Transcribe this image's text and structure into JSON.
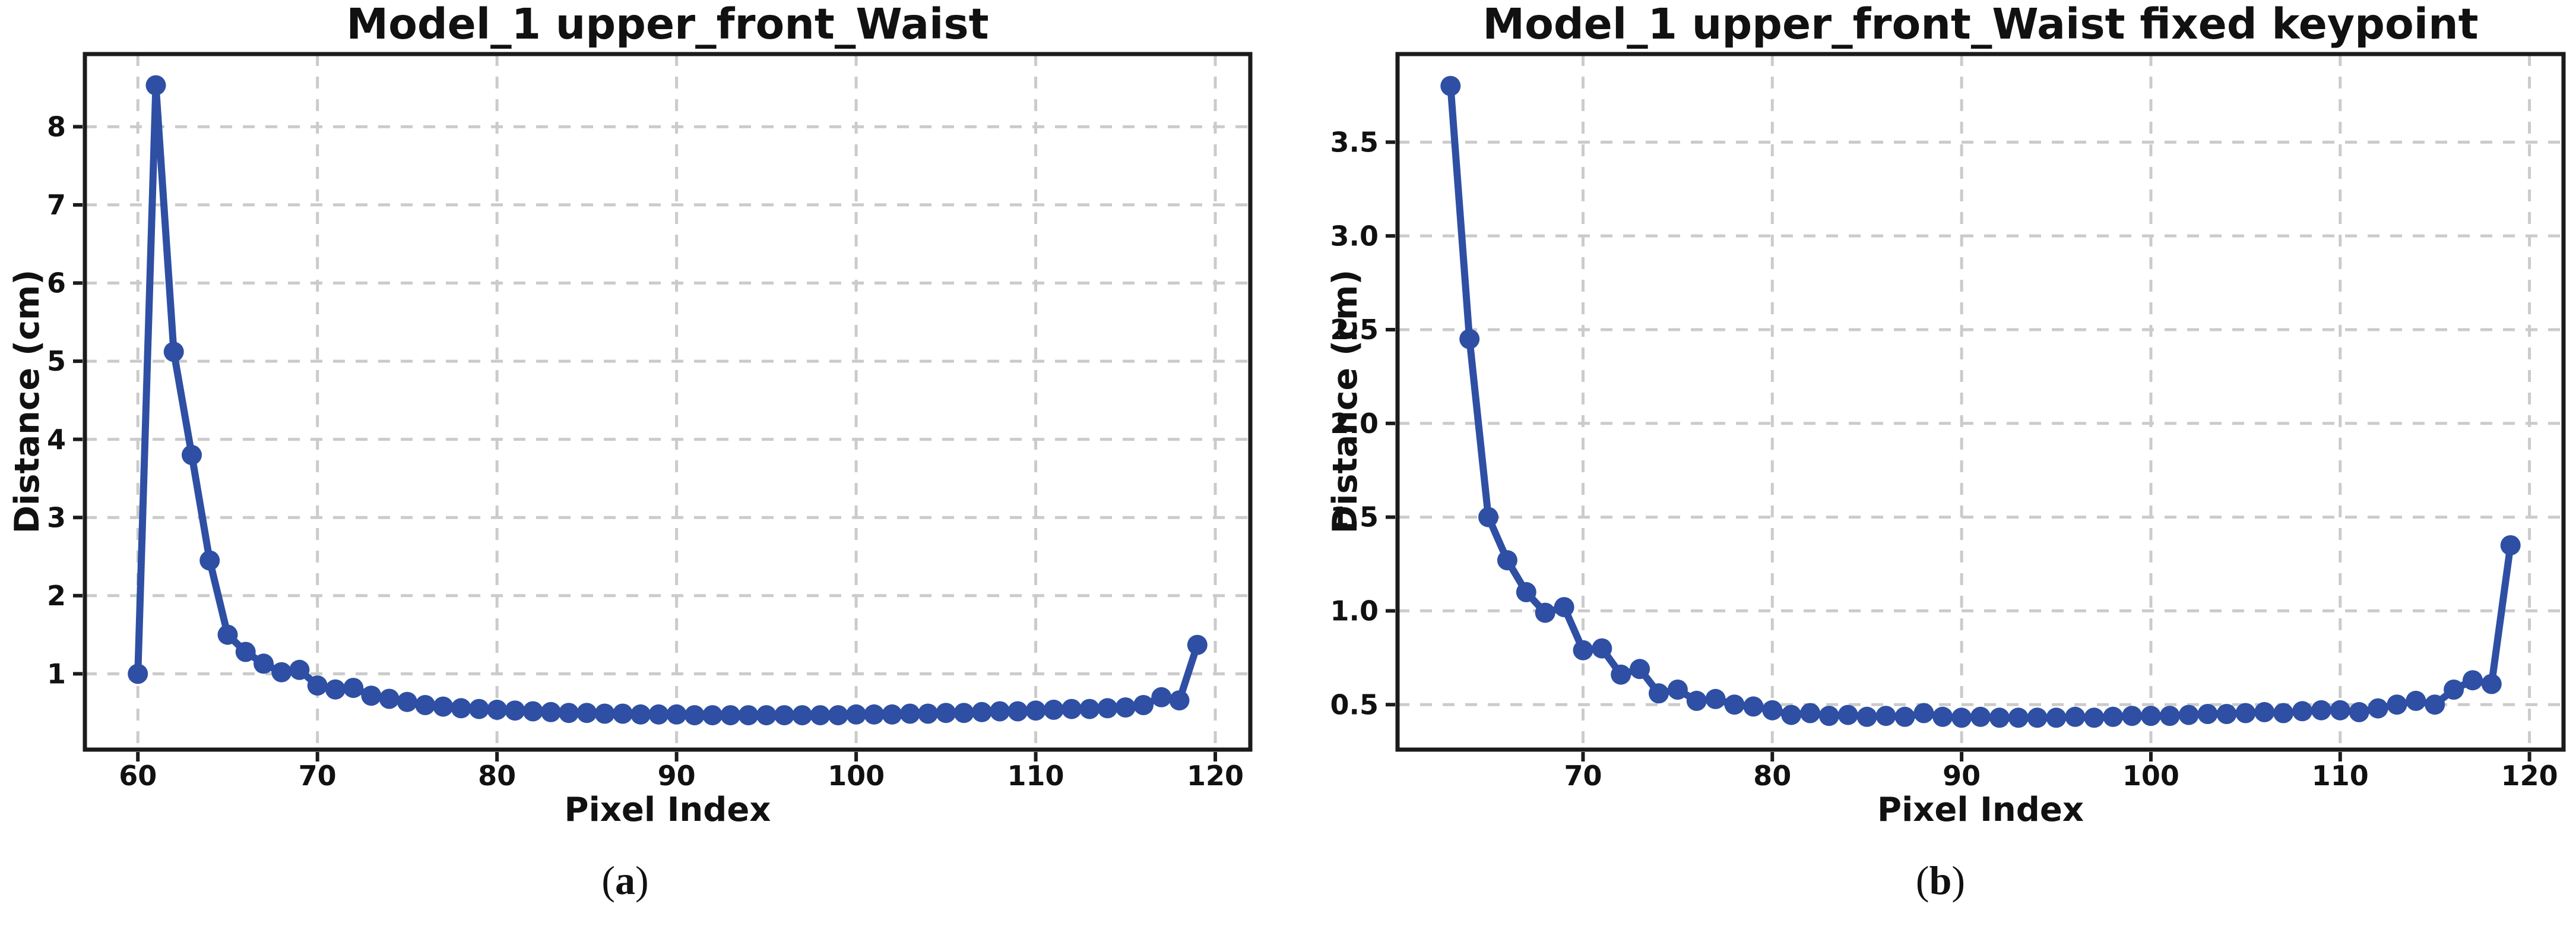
{
  "style": {
    "background": "#ffffff",
    "line_color": "#2E4FA3",
    "marker_color": "#2E4FA3",
    "grid_color": "#cbcbcb",
    "spine_color": "#1b1b1b",
    "text_color": "#111111"
  },
  "chart_data": [
    {
      "type": "line",
      "title": "Model_1 upper_front_Waist",
      "xlabel": "Pixel Index",
      "ylabel": "Distance (cm)",
      "caption": {
        "open": "(",
        "letter": "a",
        "close": ")"
      },
      "legend": "none",
      "grid": "dashed",
      "xlim": [
        57.05,
        121.95
      ],
      "ylim": [
        0.03,
        8.93
      ],
      "xticks": [
        60,
        70,
        80,
        90,
        100,
        110,
        120
      ],
      "xtick_labels": [
        "60",
        "70",
        "80",
        "90",
        "100",
        "110",
        "120"
      ],
      "yticks": [
        1,
        2,
        3,
        4,
        5,
        6,
        7,
        8
      ],
      "ytick_labels": [
        "1",
        "2",
        "3",
        "4",
        "5",
        "6",
        "7",
        "8"
      ],
      "x": [
        60,
        61,
        62,
        63,
        64,
        65,
        66,
        67,
        68,
        69,
        70,
        71,
        72,
        73,
        74,
        75,
        76,
        77,
        78,
        79,
        80,
        81,
        82,
        83,
        84,
        85,
        86,
        87,
        88,
        89,
        90,
        91,
        92,
        93,
        94,
        95,
        96,
        97,
        98,
        99,
        100,
        101,
        102,
        103,
        104,
        105,
        106,
        107,
        108,
        109,
        110,
        111,
        112,
        113,
        114,
        115,
        116,
        117,
        118,
        119
      ],
      "y": [
        1.0,
        8.53,
        5.12,
        3.8,
        2.45,
        1.5,
        1.28,
        1.13,
        1.02,
        1.05,
        0.85,
        0.8,
        0.82,
        0.72,
        0.68,
        0.64,
        0.6,
        0.58,
        0.56,
        0.55,
        0.54,
        0.53,
        0.52,
        0.51,
        0.5,
        0.5,
        0.49,
        0.49,
        0.48,
        0.48,
        0.48,
        0.47,
        0.47,
        0.47,
        0.47,
        0.47,
        0.47,
        0.47,
        0.47,
        0.47,
        0.48,
        0.48,
        0.48,
        0.49,
        0.49,
        0.5,
        0.5,
        0.51,
        0.52,
        0.52,
        0.53,
        0.54,
        0.55,
        0.55,
        0.56,
        0.57,
        0.6,
        0.7,
        0.66,
        1.37
      ]
    },
    {
      "type": "line",
      "title": "Model_1 upper_front_Waist fixed keypoint",
      "xlabel": "Pixel Index",
      "ylabel": "Distance (cm)",
      "caption": {
        "open": "(",
        "letter": "b",
        "close": ")"
      },
      "legend": "none",
      "grid": "dashed",
      "xlim": [
        60.2,
        121.8
      ],
      "ylim": [
        0.26,
        3.97
      ],
      "xticks": [
        70,
        80,
        90,
        100,
        110,
        120
      ],
      "xtick_labels": [
        "70",
        "80",
        "90",
        "100",
        "110",
        "120"
      ],
      "yticks": [
        0.5,
        1.0,
        1.5,
        2.0,
        2.5,
        3.0,
        3.5
      ],
      "ytick_labels": [
        "0.5",
        "1.0",
        "1.5",
        "2.0",
        "2.5",
        "3.0",
        "3.5"
      ],
      "x": [
        63,
        64,
        65,
        66,
        67,
        68,
        69,
        70,
        71,
        72,
        73,
        74,
        75,
        76,
        77,
        78,
        79,
        80,
        81,
        82,
        83,
        84,
        85,
        86,
        87,
        88,
        89,
        90,
        91,
        92,
        93,
        94,
        95,
        96,
        97,
        98,
        99,
        100,
        101,
        102,
        103,
        104,
        105,
        106,
        107,
        108,
        109,
        110,
        111,
        112,
        113,
        114,
        115,
        116,
        117,
        118,
        119
      ],
      "y": [
        3.8,
        2.45,
        1.5,
        1.27,
        1.1,
        0.99,
        1.02,
        0.79,
        0.8,
        0.66,
        0.69,
        0.56,
        0.58,
        0.52,
        0.53,
        0.5,
        0.49,
        0.47,
        0.445,
        0.455,
        0.44,
        0.445,
        0.435,
        0.44,
        0.435,
        0.455,
        0.435,
        0.43,
        0.435,
        0.43,
        0.43,
        0.43,
        0.43,
        0.435,
        0.43,
        0.435,
        0.44,
        0.44,
        0.44,
        0.445,
        0.45,
        0.45,
        0.455,
        0.46,
        0.455,
        0.465,
        0.47,
        0.47,
        0.46,
        0.48,
        0.5,
        0.52,
        0.5,
        0.58,
        0.63,
        0.61,
        1.35
      ]
    }
  ]
}
